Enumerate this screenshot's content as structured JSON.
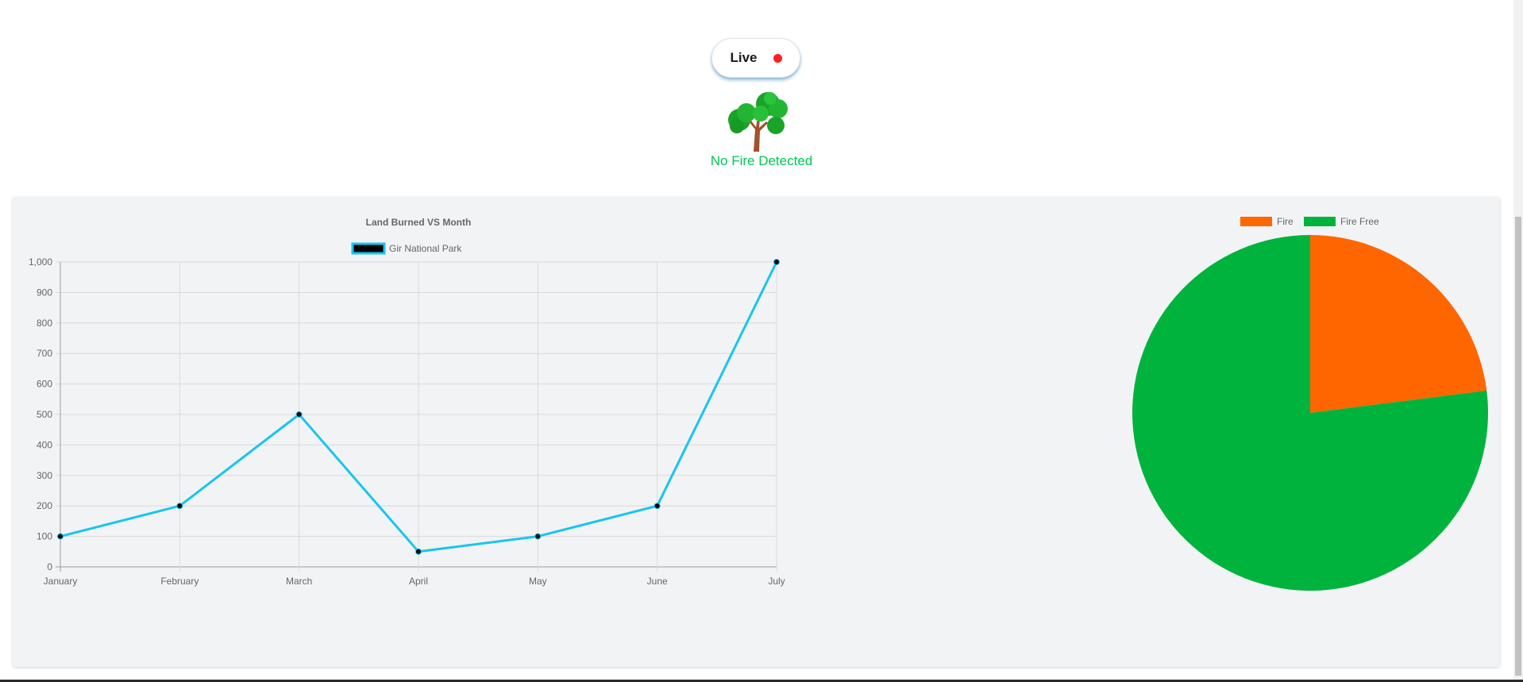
{
  "header": {
    "live_label": "Live",
    "live_dot_color": "#ff1e1e",
    "tree_icon": "tree-icon",
    "fire_status_text": "No Fire Detected",
    "fire_status_color": "#00c853"
  },
  "chart_data": [
    {
      "type": "line",
      "title": "Land Burned VS Month",
      "categories": [
        "January",
        "February",
        "March",
        "April",
        "May",
        "June",
        "July"
      ],
      "series": [
        {
          "name": "Gir National Park",
          "values": [
            100,
            200,
            500,
            50,
            100,
            200,
            1000
          ],
          "color": "#18c5f0",
          "point_color": "#000000"
        }
      ],
      "ylim": [
        0,
        1000
      ],
      "yticks": [
        0,
        100,
        200,
        300,
        400,
        500,
        600,
        700,
        800,
        900,
        1000
      ],
      "ytick_labels": [
        "0",
        "100",
        "200",
        "300",
        "400",
        "500",
        "600",
        "700",
        "800",
        "900",
        "1,000"
      ],
      "grid": true,
      "legend": "top"
    },
    {
      "type": "pie",
      "categories": [
        "Fire",
        "Fire Free"
      ],
      "values": [
        23,
        77
      ],
      "colors": [
        "#ff6600",
        "#00b33c"
      ],
      "legend": "top"
    }
  ]
}
